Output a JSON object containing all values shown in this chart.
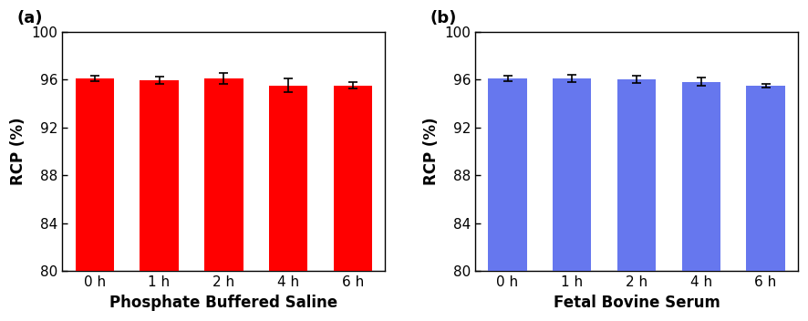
{
  "panel_a": {
    "label": "(a)",
    "categories": [
      "0 h",
      "1 h",
      "2 h",
      "4 h",
      "6 h"
    ],
    "values": [
      96.1,
      95.9,
      96.1,
      95.5,
      95.5
    ],
    "errors": [
      0.25,
      0.3,
      0.45,
      0.55,
      0.25
    ],
    "bar_color": "#FF0000",
    "xlabel": "Phosphate Buffered Saline",
    "ylabel": "RCP (%)"
  },
  "panel_b": {
    "label": "(b)",
    "categories": [
      "0 h",
      "1 h",
      "2 h",
      "4 h",
      "6 h"
    ],
    "values": [
      96.1,
      96.1,
      96.0,
      95.8,
      95.5
    ],
    "errors": [
      0.25,
      0.3,
      0.3,
      0.35,
      0.15
    ],
    "bar_color": "#6677EE",
    "xlabel": "Fetal Bovine Serum",
    "ylabel": "RCP (%)"
  },
  "ylim": [
    80,
    100
  ],
  "ybase": 80,
  "yticks": [
    80,
    84,
    88,
    92,
    96,
    100
  ],
  "bar_width": 0.6,
  "figsize": [
    8.86,
    3.52
  ],
  "dpi": 100,
  "tick_fontsize": 11,
  "xlabel_fontsize": 12,
  "ylabel_fontsize": 12,
  "panel_label_fontsize": 13
}
